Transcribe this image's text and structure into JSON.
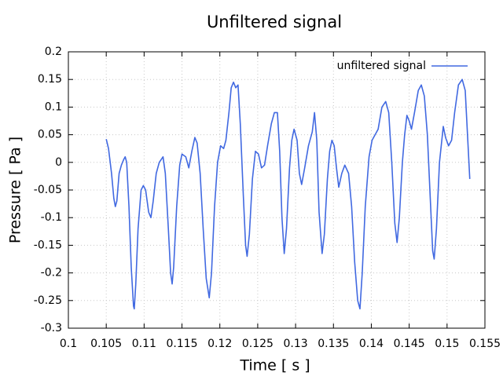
{
  "chart_data": {
    "type": "line",
    "title": "Unfiltered signal",
    "x_label": "Time [ s ]",
    "y_label": "Pressure [ Pa ]",
    "legend": "upper right",
    "grid": true,
    "xlim": [
      0.1,
      0.155
    ],
    "xticks": [
      0.1,
      0.105,
      0.11,
      0.115,
      0.12,
      0.125,
      0.13,
      0.135,
      0.14,
      0.145,
      0.15,
      0.155
    ],
    "ylim": [
      -0.3,
      0.2
    ],
    "yticks": [
      -0.3,
      -0.25,
      -0.2,
      -0.15,
      -0.1,
      -0.05,
      0,
      0.05,
      0.1,
      0.15,
      0.2
    ],
    "x": [
      0.105,
      0.1053,
      0.1057,
      0.106,
      0.1062,
      0.1064,
      0.1067,
      0.107,
      0.1073,
      0.1075,
      0.1077,
      0.108,
      0.1083,
      0.1086,
      0.1087,
      0.1089,
      0.1092,
      0.1096,
      0.1099,
      0.1102,
      0.1106,
      0.1109,
      0.1112,
      0.1116,
      0.112,
      0.1125,
      0.1128,
      0.1132,
      0.1135,
      0.1137,
      0.1139,
      0.1143,
      0.1147,
      0.115,
      0.1155,
      0.1159,
      0.1163,
      0.1167,
      0.117,
      0.1174,
      0.1178,
      0.1182,
      0.1186,
      0.1189,
      0.1193,
      0.1197,
      0.1201,
      0.1205,
      0.1208,
      0.1212,
      0.1215,
      0.1218,
      0.1221,
      0.1224,
      0.1227,
      0.1231,
      0.1234,
      0.1236,
      0.1239,
      0.1243,
      0.1247,
      0.1251,
      0.1255,
      0.1259,
      0.1263,
      0.1268,
      0.1272,
      0.1276,
      0.1279,
      0.1282,
      0.1285,
      0.1288,
      0.1292,
      0.1295,
      0.1298,
      0.1302,
      0.1305,
      0.1308,
      0.1312,
      0.1317,
      0.1322,
      0.1325,
      0.1328,
      0.1331,
      0.1335,
      0.1338,
      0.1342,
      0.1345,
      0.1348,
      0.1351,
      0.1354,
      0.1357,
      0.1361,
      0.1365,
      0.137,
      0.1374,
      0.1378,
      0.1382,
      0.1385,
      0.1388,
      0.1392,
      0.1397,
      0.1401,
      0.1405,
      0.1409,
      0.1414,
      0.1419,
      0.1423,
      0.1427,
      0.1431,
      0.1434,
      0.1437,
      0.1441,
      0.1444,
      0.1447,
      0.145,
      0.1453,
      0.1457,
      0.1462,
      0.1466,
      0.147,
      0.1474,
      0.1478,
      0.1481,
      0.1483,
      0.1486,
      0.149,
      0.1495,
      0.1498,
      0.1502,
      0.1506,
      0.151,
      0.1515,
      0.152,
      0.1524,
      0.1527,
      0.153
    ],
    "series": [
      {
        "name": "unfiltered signal",
        "color": "#4169e1",
        "values": [
          0.042,
          0.025,
          -0.02,
          -0.065,
          -0.08,
          -0.07,
          -0.02,
          -0.005,
          0.005,
          0.01,
          0.0,
          -0.08,
          -0.19,
          -0.26,
          -0.265,
          -0.22,
          -0.12,
          -0.05,
          -0.042,
          -0.05,
          -0.09,
          -0.1,
          -0.07,
          -0.02,
          0.0,
          0.01,
          -0.02,
          -0.12,
          -0.2,
          -0.22,
          -0.19,
          -0.08,
          -0.005,
          0.015,
          0.01,
          -0.01,
          0.02,
          0.045,
          0.035,
          -0.02,
          -0.12,
          -0.21,
          -0.245,
          -0.2,
          -0.08,
          0.0,
          0.03,
          0.025,
          0.04,
          0.09,
          0.135,
          0.145,
          0.135,
          0.14,
          0.07,
          -0.06,
          -0.15,
          -0.17,
          -0.13,
          -0.03,
          0.02,
          0.015,
          -0.01,
          -0.005,
          0.03,
          0.07,
          0.09,
          0.09,
          0.02,
          -0.1,
          -0.165,
          -0.12,
          -0.01,
          0.04,
          0.06,
          0.04,
          -0.02,
          -0.04,
          -0.01,
          0.03,
          0.055,
          0.09,
          0.04,
          -0.09,
          -0.165,
          -0.13,
          -0.03,
          0.02,
          0.04,
          0.03,
          -0.01,
          -0.045,
          -0.02,
          -0.005,
          -0.02,
          -0.08,
          -0.18,
          -0.25,
          -0.265,
          -0.2,
          -0.08,
          0.01,
          0.04,
          0.05,
          0.06,
          0.1,
          0.11,
          0.09,
          0.0,
          -0.11,
          -0.145,
          -0.1,
          0.0,
          0.05,
          0.085,
          0.075,
          0.06,
          0.09,
          0.13,
          0.14,
          0.12,
          0.05,
          -0.07,
          -0.16,
          -0.175,
          -0.12,
          0.0,
          0.065,
          0.045,
          0.03,
          0.04,
          0.09,
          0.14,
          0.15,
          0.13,
          0.05,
          -0.03
        ]
      }
    ]
  }
}
